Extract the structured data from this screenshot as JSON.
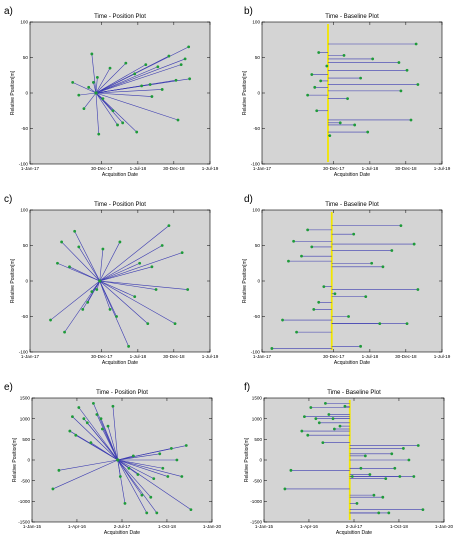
{
  "chart_data": [
    {
      "panel": "a)",
      "type": "scatter",
      "style": "star",
      "title": "Time - Position Plot",
      "xlabel": "Acquisition Date",
      "ylabel": "Relative Position[m]",
      "xlim": [
        "2017-01-01",
        "2019-07-01"
      ],
      "xticks": [
        {
          "value": "2017-01-01",
          "label": "1-Jan-17"
        },
        {
          "value": "2017-12-30",
          "label": "30-Dec-17"
        },
        {
          "value": "2018-07-01",
          "label": "1-Jul-18"
        },
        {
          "value": "2018-12-30",
          "label": "30-Dec-18"
        },
        {
          "value": "2019-07-01",
          "label": "1-Jul-19"
        }
      ],
      "ylim": [
        -100,
        100
      ],
      "yticks": [
        -100,
        -50,
        0,
        50,
        100
      ],
      "master": {
        "x": "2017-12-01",
        "y": 0
      },
      "points": [
        {
          "x": "2017-08-05",
          "y": 15
        },
        {
          "x": "2017-09-05",
          "y": -3
        },
        {
          "x": "2017-10-01",
          "y": -22
        },
        {
          "x": "2017-10-25",
          "y": 8
        },
        {
          "x": "2017-11-10",
          "y": 55
        },
        {
          "x": "2017-11-18",
          "y": 15
        },
        {
          "x": "2017-12-08",
          "y": 22
        },
        {
          "x": "2017-12-15",
          "y": -58
        },
        {
          "x": "2018-01-05",
          "y": -8
        },
        {
          "x": "2018-02-10",
          "y": 35
        },
        {
          "x": "2018-02-25",
          "y": -25
        },
        {
          "x": "2018-03-20",
          "y": -45
        },
        {
          "x": "2018-04-15",
          "y": -42
        },
        {
          "x": "2018-05-01",
          "y": 42
        },
        {
          "x": "2018-06-15",
          "y": 27
        },
        {
          "x": "2018-06-25",
          "y": -55
        },
        {
          "x": "2018-07-20",
          "y": 10
        },
        {
          "x": "2018-08-10",
          "y": 40
        },
        {
          "x": "2018-09-01",
          "y": 12
        },
        {
          "x": "2018-09-10",
          "y": -5
        },
        {
          "x": "2018-10-10",
          "y": 37
        },
        {
          "x": "2018-11-01",
          "y": 5
        },
        {
          "x": "2018-12-05",
          "y": 52
        },
        {
          "x": "2019-01-10",
          "y": 18
        },
        {
          "x": "2019-01-20",
          "y": -38
        },
        {
          "x": "2019-02-05",
          "y": 40
        },
        {
          "x": "2019-02-25",
          "y": 48
        },
        {
          "x": "2019-03-15",
          "y": 65
        },
        {
          "x": "2019-03-20",
          "y": 20
        }
      ]
    },
    {
      "panel": "b)",
      "type": "scatter",
      "style": "baseline",
      "title": "Time - Baseline Plot",
      "xlabel": "Acquisition Date",
      "ylabel": "Relative Position[m]",
      "xlim": [
        "2017-01-01",
        "2019-07-01"
      ],
      "xticks": [
        {
          "value": "2017-01-01",
          "label": "1-Jan-17"
        },
        {
          "value": "2017-12-30",
          "label": "30-Dec-17"
        },
        {
          "value": "2018-07-01",
          "label": "1-Jul-18"
        },
        {
          "value": "2018-12-30",
          "label": "30-Dec-18"
        },
        {
          "value": "2019-07-01",
          "label": "1-Jul-19"
        }
      ],
      "ylim": [
        -100,
        100
      ],
      "yticks": [
        -100,
        -50,
        0,
        50,
        100
      ],
      "master": {
        "x": "2017-12-01",
        "y": 0
      },
      "points": [
        {
          "x": "2019-02-20",
          "y": 69
        },
        {
          "x": "2017-10-15",
          "y": 57
        },
        {
          "x": "2018-02-20",
          "y": 53
        },
        {
          "x": "2018-07-15",
          "y": 48
        },
        {
          "x": "2018-11-25",
          "y": 43
        },
        {
          "x": "2017-11-25",
          "y": 38
        },
        {
          "x": "2019-01-05",
          "y": 32
        },
        {
          "x": "2017-09-10",
          "y": 26
        },
        {
          "x": "2018-05-15",
          "y": 21
        },
        {
          "x": "2017-10-25",
          "y": 17
        },
        {
          "x": "2019-03-01",
          "y": 12
        },
        {
          "x": "2017-09-25",
          "y": 8
        },
        {
          "x": "2018-12-05",
          "y": 3
        },
        {
          "x": "2017-08-20",
          "y": -3
        },
        {
          "x": "2018-03-10",
          "y": -8
        },
        {
          "x": "2017-10-05",
          "y": -25
        },
        {
          "x": "2019-01-25",
          "y": -38
        },
        {
          "x": "2018-02-01",
          "y": -42
        },
        {
          "x": "2018-04-15",
          "y": -45
        },
        {
          "x": "2018-06-20",
          "y": -55
        },
        {
          "x": "2017-12-10",
          "y": -60
        }
      ]
    },
    {
      "panel": "c)",
      "type": "scatter",
      "style": "star",
      "title": "Time - Position Plot",
      "xlabel": "Acquisition Date",
      "ylabel": "Relative Position[m]",
      "xlim": [
        "2017-01-01",
        "2019-07-01"
      ],
      "xticks": [
        {
          "value": "2017-01-01",
          "label": "1-Jan-17"
        },
        {
          "value": "2017-12-30",
          "label": "30-Dec-17"
        },
        {
          "value": "2018-07-01",
          "label": "1-Jul-18"
        },
        {
          "value": "2018-12-30",
          "label": "30-Dec-18"
        },
        {
          "value": "2019-07-01",
          "label": "1-Jul-19"
        }
      ],
      "ylim": [
        -100,
        100
      ],
      "yticks": [
        -100,
        -50,
        0,
        50,
        100
      ],
      "master": {
        "x": "2017-12-20",
        "y": 0
      },
      "points": [
        {
          "x": "2017-04-15",
          "y": -55
        },
        {
          "x": "2017-05-20",
          "y": 25
        },
        {
          "x": "2017-06-10",
          "y": 55
        },
        {
          "x": "2017-06-25",
          "y": -72
        },
        {
          "x": "2017-07-20",
          "y": 20
        },
        {
          "x": "2017-08-15",
          "y": 70
        },
        {
          "x": "2017-09-05",
          "y": 48
        },
        {
          "x": "2017-09-25",
          "y": -40
        },
        {
          "x": "2017-10-20",
          "y": -30
        },
        {
          "x": "2017-11-10",
          "y": -15
        },
        {
          "x": "2017-12-05",
          "y": -12
        },
        {
          "x": "2018-01-05",
          "y": 45
        },
        {
          "x": "2018-02-10",
          "y": -40
        },
        {
          "x": "2018-03-15",
          "y": -50
        },
        {
          "x": "2018-04-01",
          "y": 55
        },
        {
          "x": "2018-05-15",
          "y": -92
        },
        {
          "x": "2018-06-15",
          "y": -22
        },
        {
          "x": "2018-07-10",
          "y": 25
        },
        {
          "x": "2018-08-20",
          "y": -60
        },
        {
          "x": "2018-09-10",
          "y": 20
        },
        {
          "x": "2018-10-01",
          "y": -12
        },
        {
          "x": "2018-11-01",
          "y": 50
        },
        {
          "x": "2018-12-05",
          "y": 78
        },
        {
          "x": "2019-01-05",
          "y": -60
        },
        {
          "x": "2019-02-10",
          "y": 40
        },
        {
          "x": "2019-03-10",
          "y": -12
        }
      ]
    },
    {
      "panel": "d)",
      "type": "scatter",
      "style": "baseline",
      "title": "Time - Baseline Plot",
      "xlabel": "Acquisition Date",
      "ylabel": "Relative Position[m]",
      "xlim": [
        "2017-01-01",
        "2019-07-01"
      ],
      "xticks": [
        {
          "value": "2017-01-01",
          "label": "1-Jan-17"
        },
        {
          "value": "2017-12-30",
          "label": "30-Dec-17"
        },
        {
          "value": "2018-07-01",
          "label": "1-Jul-18"
        },
        {
          "value": "2018-12-30",
          "label": "30-Dec-18"
        },
        {
          "value": "2019-07-01",
          "label": "1-Jul-19"
        }
      ],
      "ylim": [
        -100,
        100
      ],
      "yticks": [
        -100,
        -50,
        0,
        50,
        100
      ],
      "master": {
        "x": "2017-12-20",
        "y": 0
      },
      "points": [
        {
          "x": "2018-12-05",
          "y": 78
        },
        {
          "x": "2017-08-20",
          "y": 72
        },
        {
          "x": "2018-04-10",
          "y": 66
        },
        {
          "x": "2017-06-10",
          "y": 56
        },
        {
          "x": "2019-02-10",
          "y": 52
        },
        {
          "x": "2017-09-10",
          "y": 48
        },
        {
          "x": "2018-10-20",
          "y": 43
        },
        {
          "x": "2017-07-20",
          "y": 35
        },
        {
          "x": "2018-07-10",
          "y": 25
        },
        {
          "x": "2017-05-15",
          "y": 28
        },
        {
          "x": "2018-09-05",
          "y": 20
        },
        {
          "x": "2017-11-10",
          "y": -8
        },
        {
          "x": "2018-06-10",
          "y": -22
        },
        {
          "x": "2019-03-01",
          "y": -12
        },
        {
          "x": "2017-10-15",
          "y": -30
        },
        {
          "x": "2018-01-05",
          "y": -18
        },
        {
          "x": "2017-09-20",
          "y": -40
        },
        {
          "x": "2018-03-15",
          "y": -50
        },
        {
          "x": "2017-04-15",
          "y": -55
        },
        {
          "x": "2019-01-05",
          "y": -60
        },
        {
          "x": "2018-08-20",
          "y": -60
        },
        {
          "x": "2017-06-25",
          "y": -72
        },
        {
          "x": "2018-05-15",
          "y": -92
        },
        {
          "x": "2017-02-20",
          "y": -95
        }
      ]
    },
    {
      "panel": "e)",
      "type": "scatter",
      "style": "star",
      "title": "Time - Position Plot",
      "xlabel": "Acquisition Date",
      "ylabel": "Relative Position[m]",
      "xlim": [
        "2015-01-01",
        "2020-01-01"
      ],
      "xticks": [
        {
          "value": "2015-01-01",
          "label": "1-Jan-15"
        },
        {
          "value": "2016-04-01",
          "label": "1-Apr-16"
        },
        {
          "value": "2017-07-02",
          "label": "2-Jul-17"
        },
        {
          "value": "2018-10-01",
          "label": "1-Oct-18"
        },
        {
          "value": "2020-01-01",
          "label": "1-Jan-20"
        }
      ],
      "ylim": [
        -1500,
        1500
      ],
      "yticks": [
        -1500,
        -1000,
        -500,
        0,
        500,
        1000,
        1500
      ],
      "master": {
        "x": "2017-05-20",
        "y": 0
      },
      "points": [
        {
          "x": "2015-08-01",
          "y": -700
        },
        {
          "x": "2015-10-01",
          "y": -250
        },
        {
          "x": "2016-01-20",
          "y": 700
        },
        {
          "x": "2016-02-15",
          "y": 1050
        },
        {
          "x": "2016-03-20",
          "y": 600
        },
        {
          "x": "2016-04-20",
          "y": 1270
        },
        {
          "x": "2016-06-10",
          "y": 1000
        },
        {
          "x": "2016-07-15",
          "y": 900
        },
        {
          "x": "2016-08-20",
          "y": 420
        },
        {
          "x": "2016-09-15",
          "y": 1370
        },
        {
          "x": "2016-10-20",
          "y": 1100
        },
        {
          "x": "2016-12-01",
          "y": 1000
        },
        {
          "x": "2016-12-15",
          "y": 750
        },
        {
          "x": "2017-02-10",
          "y": 820
        },
        {
          "x": "2017-04-01",
          "y": 1300
        },
        {
          "x": "2017-06-15",
          "y": -400
        },
        {
          "x": "2017-08-01",
          "y": -1050
        },
        {
          "x": "2017-09-10",
          "y": -200
        },
        {
          "x": "2017-10-25",
          "y": 100
        },
        {
          "x": "2017-12-10",
          "y": -350
        },
        {
          "x": "2018-01-20",
          "y": -850
        },
        {
          "x": "2018-03-10",
          "y": -1280
        },
        {
          "x": "2018-04-20",
          "y": -900
        },
        {
          "x": "2018-05-20",
          "y": -450
        },
        {
          "x": "2018-06-20",
          "y": -1280
        },
        {
          "x": "2018-07-20",
          "y": 150
        },
        {
          "x": "2018-08-20",
          "y": -200
        },
        {
          "x": "2018-10-10",
          "y": -400
        },
        {
          "x": "2018-11-15",
          "y": 280
        },
        {
          "x": "2019-01-10",
          "y": 0
        },
        {
          "x": "2019-03-01",
          "y": -400
        },
        {
          "x": "2019-04-15",
          "y": 350
        },
        {
          "x": "2019-06-01",
          "y": -1200
        }
      ]
    },
    {
      "panel": "f)",
      "type": "scatter",
      "style": "baseline",
      "title": "Time - Baseline Plot",
      "xlabel": "Acquisition Date",
      "ylabel": "Relative Position[m]",
      "xlim": [
        "2015-01-01",
        "2020-01-01"
      ],
      "xticks": [
        {
          "value": "2015-01-01",
          "label": "1-Jan-15"
        },
        {
          "value": "2016-04-01",
          "label": "1-Apr-16"
        },
        {
          "value": "2017-07-02",
          "label": "2-Jul-17"
        },
        {
          "value": "2018-10-01",
          "label": "1-Oct-18"
        },
        {
          "value": "2020-01-01",
          "label": "1-Jan-20"
        }
      ],
      "ylim": [
        -1500,
        1500
      ],
      "yticks": [
        -1500,
        -1000,
        -500,
        0,
        500,
        1000,
        1500
      ],
      "master": {
        "x": "2017-05-20",
        "y": 0
      },
      "points": [
        {
          "x": "2016-09-15",
          "y": 1370
        },
        {
          "x": "2017-04-01",
          "y": 1300
        },
        {
          "x": "2016-04-20",
          "y": 1270
        },
        {
          "x": "2016-10-20",
          "y": 1100
        },
        {
          "x": "2016-02-15",
          "y": 1050
        },
        {
          "x": "2016-06-10",
          "y": 1000
        },
        {
          "x": "2016-12-01",
          "y": 1000
        },
        {
          "x": "2016-07-15",
          "y": 900
        },
        {
          "x": "2017-02-10",
          "y": 820
        },
        {
          "x": "2016-12-15",
          "y": 750
        },
        {
          "x": "2016-01-20",
          "y": 700
        },
        {
          "x": "2016-03-20",
          "y": 600
        },
        {
          "x": "2016-08-20",
          "y": 420
        },
        {
          "x": "2019-04-15",
          "y": 350
        },
        {
          "x": "2018-11-15",
          "y": 280
        },
        {
          "x": "2018-07-20",
          "y": 150
        },
        {
          "x": "2017-10-25",
          "y": 100
        },
        {
          "x": "2019-01-10",
          "y": 0
        },
        {
          "x": "2017-09-10",
          "y": -200
        },
        {
          "x": "2018-08-20",
          "y": -200
        },
        {
          "x": "2015-10-01",
          "y": -250
        },
        {
          "x": "2017-12-10",
          "y": -350
        },
        {
          "x": "2017-06-15",
          "y": -400
        },
        {
          "x": "2018-10-10",
          "y": -400
        },
        {
          "x": "2019-03-01",
          "y": -400
        },
        {
          "x": "2018-05-20",
          "y": -450
        },
        {
          "x": "2015-08-01",
          "y": -700
        },
        {
          "x": "2018-01-20",
          "y": -850
        },
        {
          "x": "2018-04-20",
          "y": -900
        },
        {
          "x": "2017-08-01",
          "y": -1050
        },
        {
          "x": "2019-06-01",
          "y": -1200
        },
        {
          "x": "2018-03-10",
          "y": -1280
        },
        {
          "x": "2018-06-20",
          "y": -1280
        }
      ]
    }
  ]
}
